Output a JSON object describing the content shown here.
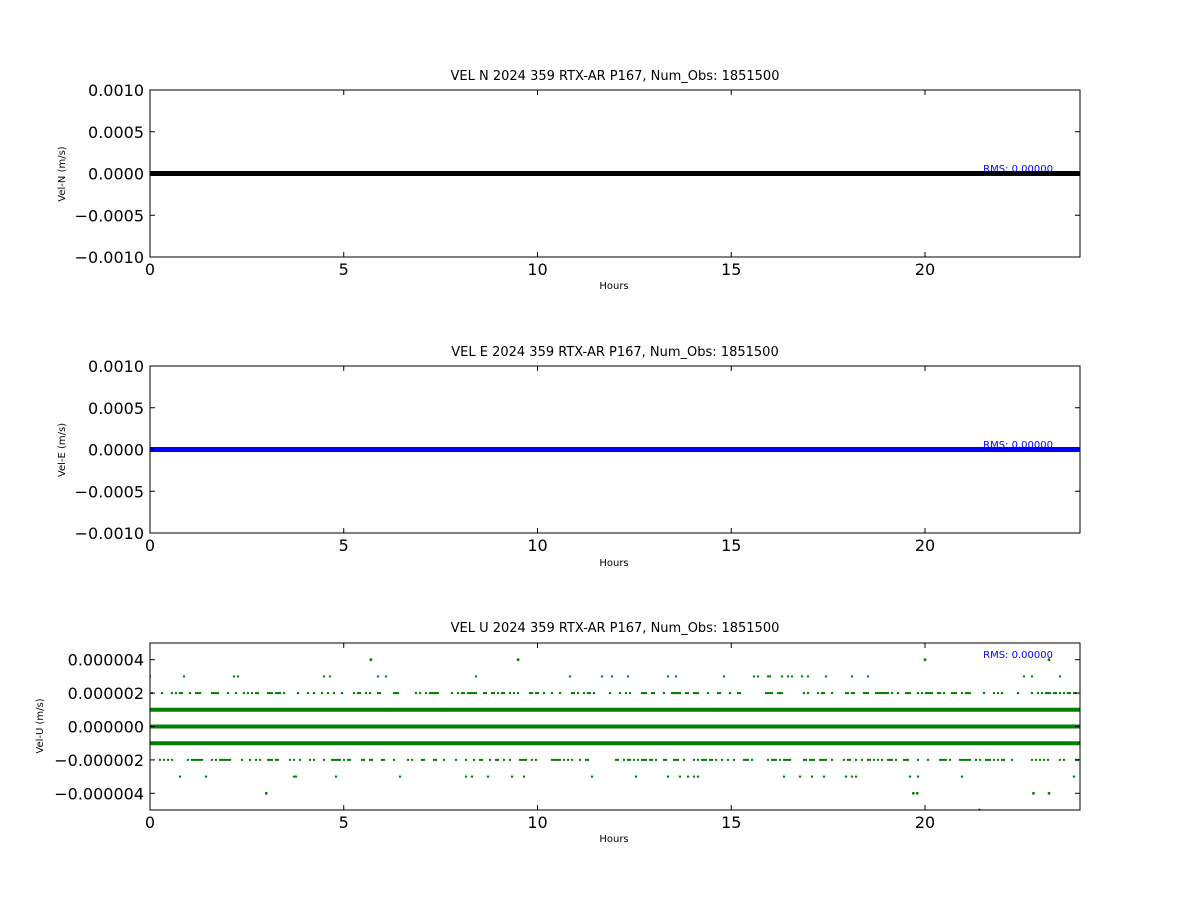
{
  "chart_data": [
    {
      "type": "line",
      "title": "VEL N 2024 359 RTX-AR  P167, Num_Obs: 1851500",
      "xlabel": "Hours",
      "ylabel": "Vel-N (m/s)",
      "xlim": [
        0,
        24
      ],
      "ylim": [
        -0.001,
        0.001
      ],
      "xticks": [
        0,
        5,
        10,
        15,
        20
      ],
      "xtick_labels": [
        "0",
        "5",
        "10",
        "15",
        "20"
      ],
      "yticks": [
        -0.001,
        -0.0005,
        0,
        0.0005,
        0.001
      ],
      "ytick_labels": [
        "−0.0010",
        "−0.0005",
        "0.0000",
        "0.0005",
        "0.0010"
      ],
      "grid": false,
      "series": [
        {
          "color": "#000000",
          "x": [
            0,
            24
          ],
          "y": [
            0,
            0
          ]
        }
      ],
      "annotation": {
        "text": "RMS:  0.00000",
        "x": 21.5,
        "y": 2e-05,
        "color": "#0000ff"
      }
    },
    {
      "type": "line",
      "title": "VEL E 2024 359 RTX-AR  P167, Num_Obs: 1851500",
      "xlabel": "Hours",
      "ylabel": "Vel-E (m/s)",
      "xlim": [
        0,
        24
      ],
      "ylim": [
        -0.001,
        0.001
      ],
      "xticks": [
        0,
        5,
        10,
        15,
        20
      ],
      "xtick_labels": [
        "0",
        "5",
        "10",
        "15",
        "20"
      ],
      "yticks": [
        -0.001,
        -0.0005,
        0,
        0.0005,
        0.001
      ],
      "ytick_labels": [
        "−0.0010",
        "−0.0005",
        "0.0000",
        "0.0005",
        "0.0010"
      ],
      "grid": false,
      "series": [
        {
          "color": "#0000ff",
          "x": [
            0,
            24
          ],
          "y": [
            0,
            0
          ]
        }
      ],
      "annotation": {
        "text": "RMS:  0.00000",
        "x": 21.5,
        "y": 2e-05,
        "color": "#0000ff"
      }
    },
    {
      "type": "scatter",
      "title": "VEL U 2024 359 RTX-AR  P167, Num_Obs: 1851500",
      "xlabel": "Hours",
      "ylabel": "Vel-U (m/s)",
      "xlim": [
        0,
        24
      ],
      "ylim": [
        -5e-06,
        5e-06
      ],
      "xticks": [
        0,
        5,
        10,
        15,
        20
      ],
      "xtick_labels": [
        "0",
        "5",
        "10",
        "15",
        "20"
      ],
      "yticks": [
        -4e-06,
        -2e-06,
        0,
        2e-06,
        4e-06
      ],
      "ytick_labels": [
        "−0.000004",
        "−0.000002",
        "0.000000",
        "0.000002",
        "0.000004"
      ],
      "grid": false,
      "series": [
        {
          "color": "#007f00",
          "bands": [
            {
              "y": 1e-06,
              "x_range": [
                0,
                24
              ],
              "density": "continuous"
            },
            {
              "y": 0,
              "x_range": [
                0,
                24
              ],
              "density": "continuous"
            },
            {
              "y": -1e-06,
              "x_range": [
                0,
                24
              ],
              "density": "continuous"
            },
            {
              "y": 2e-06,
              "x_range": [
                0,
                24
              ],
              "density": "dense"
            },
            {
              "y": -2e-06,
              "x_range": [
                0,
                24
              ],
              "density": "dense"
            },
            {
              "y": 3e-06,
              "x_range": [
                0,
                24
              ],
              "density": "sparse"
            },
            {
              "y": -3e-06,
              "x_range": [
                0,
                24
              ],
              "density": "sparse"
            }
          ],
          "outliers": [
            {
              "x": 5.7,
              "y": 4e-06
            },
            {
              "x": 9.5,
              "y": 4e-06
            },
            {
              "x": 20.0,
              "y": 4e-06
            },
            {
              "x": 23.2,
              "y": 4e-06
            },
            {
              "x": 3.0,
              "y": -4e-06
            },
            {
              "x": 19.7,
              "y": -4e-06
            },
            {
              "x": 19.8,
              "y": -4e-06
            },
            {
              "x": 22.8,
              "y": -4e-06
            },
            {
              "x": 23.2,
              "y": -4e-06
            },
            {
              "x": 21.4,
              "y": -5e-06
            }
          ]
        }
      ],
      "annotation": {
        "text": "RMS:  0.00000",
        "x": 21.5,
        "y": 4.1e-06,
        "color": "#0000ff"
      }
    }
  ]
}
